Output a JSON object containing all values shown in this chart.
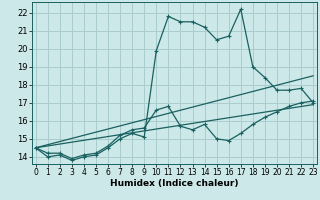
{
  "title": "",
  "xlabel": "Humidex (Indice chaleur)",
  "bg_color": "#cce8e8",
  "grid_color": "#aacccc",
  "line_color": "#1a6060",
  "x_ticks": [
    0,
    1,
    2,
    3,
    4,
    5,
    6,
    7,
    8,
    9,
    10,
    11,
    12,
    13,
    14,
    15,
    16,
    17,
    18,
    19,
    20,
    21,
    22,
    23
  ],
  "y_ticks": [
    14,
    15,
    16,
    17,
    18,
    19,
    20,
    21,
    22
  ],
  "xlim": [
    -0.3,
    23.3
  ],
  "ylim": [
    13.6,
    22.6
  ],
  "series1_x": [
    0,
    1,
    2,
    3,
    4,
    5,
    6,
    7,
    8,
    9,
    10,
    11,
    12,
    13,
    14,
    15,
    16,
    17,
    18,
    19,
    20,
    21,
    22,
    23
  ],
  "series1_y": [
    14.5,
    14.0,
    14.1,
    13.8,
    14.0,
    14.1,
    14.5,
    15.0,
    15.3,
    15.1,
    19.9,
    21.8,
    21.5,
    21.5,
    21.2,
    20.5,
    20.7,
    22.2,
    19.0,
    18.4,
    17.7,
    17.7,
    17.8,
    17.0
  ],
  "series2_x": [
    0,
    23
  ],
  "series2_y": [
    14.5,
    16.9
  ],
  "series3_x": [
    0,
    23
  ],
  "series3_y": [
    14.5,
    18.5
  ],
  "series4_x": [
    0,
    1,
    2,
    3,
    4,
    5,
    6,
    7,
    8,
    9,
    10,
    11,
    12,
    13,
    14,
    15,
    16,
    17,
    18,
    19,
    20,
    21,
    22,
    23
  ],
  "series4_y": [
    14.5,
    14.2,
    14.2,
    13.9,
    14.1,
    14.2,
    14.6,
    15.2,
    15.5,
    15.6,
    16.6,
    16.8,
    15.7,
    15.5,
    15.8,
    15.0,
    14.9,
    15.3,
    15.8,
    16.2,
    16.5,
    16.8,
    17.0,
    17.1
  ]
}
